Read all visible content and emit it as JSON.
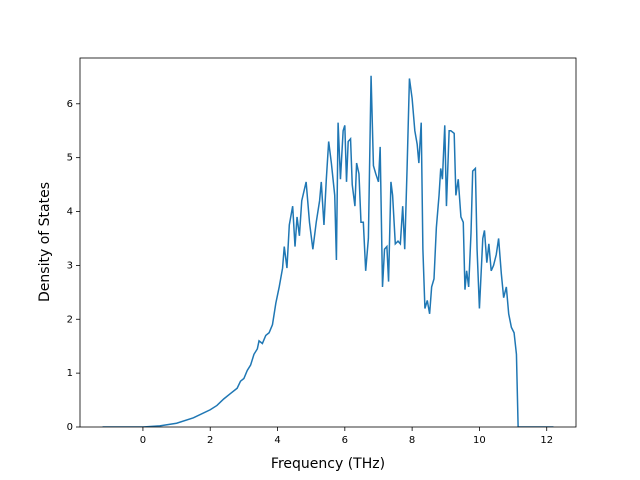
{
  "chart_data": {
    "type": "line",
    "x_label": "Frequency (THz)",
    "y_label": "Density of States",
    "x": [
      -1.2,
      -0.5,
      0,
      0.5,
      1.0,
      1.5,
      2.0,
      2.2,
      2.4,
      2.6,
      2.8,
      2.9,
      3.0,
      3.1,
      3.2,
      3.3,
      3.4,
      3.45,
      3.55,
      3.65,
      3.75,
      3.85,
      3.95,
      4.05,
      4.15,
      4.2,
      4.28,
      4.35,
      4.45,
      4.52,
      4.58,
      4.65,
      4.72,
      4.85,
      4.95,
      5.05,
      5.15,
      5.25,
      5.3,
      5.38,
      5.45,
      5.52,
      5.6,
      5.7,
      5.75,
      5.8,
      5.87,
      5.95,
      6.0,
      6.05,
      6.1,
      6.17,
      6.22,
      6.3,
      6.35,
      6.42,
      6.48,
      6.55,
      6.62,
      6.7,
      6.78,
      6.85,
      6.92,
      7.0,
      7.05,
      7.12,
      7.18,
      7.25,
      7.3,
      7.37,
      7.42,
      7.5,
      7.58,
      7.65,
      7.72,
      7.78,
      7.85,
      7.92,
      8.0,
      8.08,
      8.15,
      8.2,
      8.27,
      8.32,
      8.38,
      8.45,
      8.52,
      8.58,
      8.65,
      8.72,
      8.8,
      8.85,
      8.9,
      8.97,
      9.02,
      9.1,
      9.15,
      9.25,
      9.3,
      9.37,
      9.45,
      9.52,
      9.57,
      9.62,
      9.68,
      9.75,
      9.8,
      9.88,
      9.93,
      10.0,
      10.1,
      10.15,
      10.22,
      10.28,
      10.35,
      10.42,
      10.5,
      10.57,
      10.65,
      10.72,
      10.8,
      10.87,
      10.95,
      11.03,
      11.1,
      11.15,
      11.5,
      12.2
    ],
    "series": [
      {
        "color": "#1f77b4",
        "values": [
          0,
          0,
          0,
          0.02,
          0.07,
          0.17,
          0.32,
          0.4,
          0.52,
          0.62,
          0.72,
          0.85,
          0.9,
          1.05,
          1.15,
          1.35,
          1.45,
          1.6,
          1.55,
          1.7,
          1.75,
          1.9,
          2.3,
          2.6,
          2.95,
          3.35,
          2.95,
          3.75,
          4.1,
          3.35,
          3.9,
          3.55,
          4.2,
          4.55,
          3.8,
          3.3,
          3.8,
          4.2,
          4.55,
          3.75,
          4.6,
          5.3,
          4.9,
          4.3,
          3.1,
          5.65,
          4.6,
          5.5,
          5.6,
          4.55,
          5.3,
          5.35,
          4.5,
          4.1,
          4.9,
          4.7,
          3.8,
          3.8,
          2.9,
          3.5,
          6.52,
          4.85,
          4.7,
          4.55,
          5.2,
          2.6,
          3.3,
          3.35,
          2.7,
          4.55,
          4.3,
          3.4,
          3.45,
          3.4,
          4.1,
          3.3,
          4.8,
          6.47,
          6.1,
          5.5,
          5.25,
          4.9,
          5.65,
          3.3,
          2.2,
          2.35,
          2.1,
          2.6,
          2.75,
          3.7,
          4.3,
          4.8,
          4.6,
          5.6,
          4.1,
          5.5,
          5.5,
          5.45,
          4.3,
          4.6,
          3.9,
          3.8,
          2.55,
          2.9,
          2.6,
          3.6,
          4.75,
          4.8,
          3.3,
          2.2,
          3.5,
          3.65,
          3.05,
          3.4,
          2.9,
          3.0,
          3.2,
          3.5,
          2.85,
          2.4,
          2.6,
          2.1,
          1.85,
          1.75,
          1.35,
          0,
          0,
          0
        ]
      }
    ],
    "xlim": [
      -1.87,
      12.87
    ],
    "ylim": [
      0,
      6.85
    ],
    "xticks": [
      0,
      2,
      4,
      6,
      8,
      10,
      12
    ],
    "yticks": [
      0,
      1,
      2,
      3,
      4,
      5,
      6
    ]
  }
}
